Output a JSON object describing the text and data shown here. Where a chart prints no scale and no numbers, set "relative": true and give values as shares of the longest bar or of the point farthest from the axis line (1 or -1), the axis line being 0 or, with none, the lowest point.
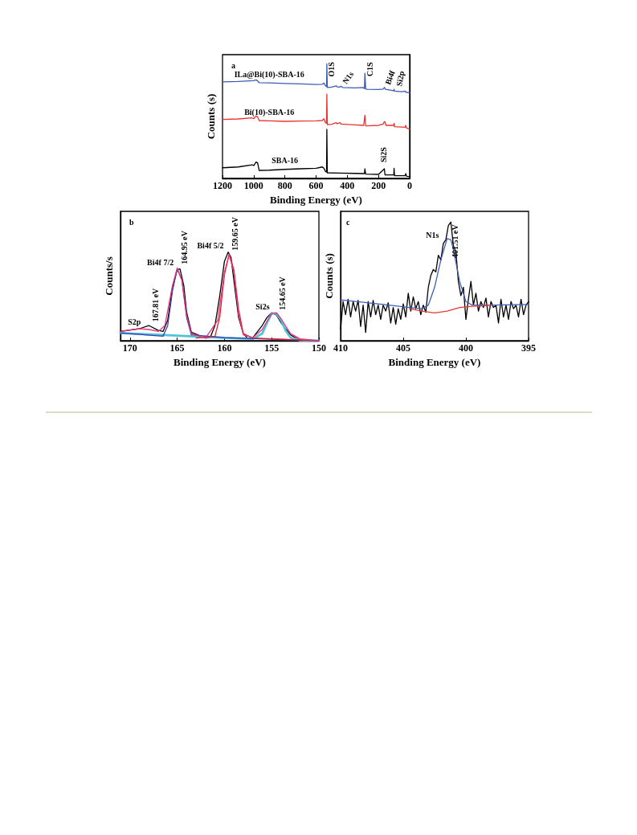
{
  "chart_data": [
    {
      "type": "line",
      "title": "a",
      "xlabel": "Binding Energy (eV)",
      "ylabel": "Counts (s)",
      "relative": true,
      "xlim": [
        1200,
        0
      ],
      "xticks": [
        1200,
        1000,
        800,
        600,
        400,
        200,
        0
      ],
      "series": [
        {
          "name": "ILa@Bi(10)-SBA-16",
          "color": "#3b5bb5",
          "x": [
            1200,
            1100,
            1000,
            985,
            975,
            965,
            900,
            800,
            700,
            600,
            560,
            550,
            540,
            533,
            531,
            528,
            500,
            470,
            465,
            450,
            440,
            430,
            350,
            300,
            290,
            287,
            282,
            275,
            200,
            170,
            162,
            155,
            102,
            100,
            97,
            50,
            28,
            25,
            0
          ],
          "values": [
            0.843,
            0.846,
            0.853,
            0.86,
            0.85,
            0.836,
            0.834,
            0.829,
            0.825,
            0.82,
            0.822,
            0.832,
            0.808,
            0.801,
            1.0,
            0.794,
            0.797,
            0.808,
            0.799,
            0.797,
            0.804,
            0.794,
            0.79,
            0.794,
            0.783,
            0.918,
            0.783,
            0.778,
            0.776,
            0.78,
            0.794,
            0.778,
            0.766,
            0.778,
            0.762,
            0.757,
            0.762,
            0.752,
            0.748
          ]
        },
        {
          "name": "Bi(10)-SBA-16",
          "color": "#e8332f",
          "x": [
            1200,
            1100,
            1010,
            1000,
            985,
            975,
            965,
            900,
            800,
            700,
            600,
            560,
            550,
            540,
            533,
            531,
            528,
            500,
            470,
            465,
            445,
            440,
            350,
            295,
            287,
            282,
            200,
            170,
            162,
            158,
            152,
            102,
            100,
            97,
            30,
            25,
            20,
            0
          ],
          "values": [
            0.514,
            0.519,
            0.528,
            0.521,
            0.544,
            0.537,
            0.505,
            0.502,
            0.498,
            0.5,
            0.502,
            0.505,
            0.521,
            0.486,
            0.481,
            0.736,
            0.47,
            0.472,
            0.486,
            0.477,
            0.486,
            0.474,
            0.467,
            0.463,
            0.551,
            0.458,
            0.463,
            0.474,
            0.495,
            0.493,
            0.463,
            0.463,
            0.481,
            0.451,
            0.446,
            0.463,
            0.439,
            0.43
          ]
        },
        {
          "name": "SBA-16",
          "color": "#000000",
          "x": [
            1200,
            1100,
            1010,
            1000,
            985,
            975,
            965,
            900,
            800,
            700,
            600,
            560,
            550,
            540,
            533,
            531,
            528,
            450,
            350,
            290,
            287,
            282,
            200,
            162,
            158,
            102,
            100,
            97,
            30,
            25,
            20,
            0
          ],
          "values": [
            0.093,
            0.1,
            0.119,
            0.112,
            0.143,
            0.136,
            0.07,
            0.072,
            0.079,
            0.084,
            0.089,
            0.1,
            0.089,
            0.061,
            0.056,
            0.428,
            0.049,
            0.047,
            0.044,
            0.042,
            0.084,
            0.037,
            0.035,
            0.084,
            0.03,
            0.03,
            0.089,
            0.023,
            0.023,
            0.042,
            0.019,
            0.016
          ]
        }
      ],
      "annotations": [
        {
          "text": "O1S",
          "x": 531,
          "y": 1.0
        },
        {
          "text": "N1s",
          "x": 440,
          "y": 0.804
        },
        {
          "text": "C1S",
          "x": 287,
          "y": 0.918
        },
        {
          "text": "Bi4f",
          "x": 162,
          "y": 0.794
        },
        {
          "text": "Si2p",
          "x": 100,
          "y": 0.778
        },
        {
          "text": "Si2S",
          "x": 162,
          "y": 0.084
        }
      ]
    },
    {
      "type": "line",
      "title": "b",
      "xlabel": "Binding Energy (eV)",
      "ylabel": "Counts/s",
      "relative": true,
      "xlim": [
        171,
        150
      ],
      "xticks": [
        170,
        165,
        160,
        155,
        150
      ],
      "series": [
        {
          "color": "#000000",
          "x": [
            171,
            169,
            168,
            167,
            166.5,
            166,
            165.5,
            165,
            164.7,
            164.3,
            164,
            163.5,
            162,
            161.5,
            161,
            160.5,
            160,
            159.6,
            159.3,
            159,
            158.5,
            158,
            157.5,
            157,
            156,
            155.5,
            155,
            154.5,
            154,
            153,
            152,
            150
          ],
          "values": [
            0.105,
            0.136,
            0.172,
            0.117,
            0.105,
            0.232,
            0.593,
            0.804,
            0.81,
            0.623,
            0.322,
            0.096,
            0.03,
            0.036,
            0.172,
            0.503,
            0.895,
            1.0,
            0.94,
            0.684,
            0.262,
            0.081,
            0.021,
            0.036,
            0.172,
            0.262,
            0.316,
            0.292,
            0.202,
            0.066,
            0.006,
            0.0
          ]
        },
        {
          "color": "#4fc3d9",
          "x": [
            171,
            165,
            160,
            157,
            156,
            155.5,
            155,
            154.5,
            154,
            153.5,
            153,
            152,
            150
          ],
          "values": [
            0.087,
            0.057,
            0.033,
            0.021,
            0.081,
            0.202,
            0.307,
            0.307,
            0.232,
            0.111,
            0.036,
            0.006,
            0.0
          ]
        },
        {
          "color": "#3a3fb0",
          "x": [
            171,
            166.5,
            166,
            165.5,
            165,
            164.5,
            164,
            163.5,
            160,
            150
          ],
          "values": [
            0.087,
            0.051,
            0.172,
            0.563,
            0.81,
            0.684,
            0.262,
            0.066,
            0.036,
            0.0
          ]
        },
        {
          "color": "#e0202a",
          "x": [
            163,
            161,
            160.5,
            160,
            159.5,
            159,
            158.5,
            158,
            157,
            150
          ],
          "values": [
            0.03,
            0.051,
            0.262,
            0.744,
            0.979,
            0.804,
            0.352,
            0.081,
            0.03,
            0.0
          ]
        },
        {
          "color": "#e6357a",
          "x": [
            171,
            169,
            168,
            167,
            166.3,
            165.5,
            165,
            164.5,
            164,
            163.5,
            162,
            160.7,
            160,
            159.5,
            159,
            158.5,
            158,
            157,
            156,
            155,
            154.5,
            154,
            153,
            152,
            150
          ],
          "values": [
            0.105,
            0.136,
            0.127,
            0.105,
            0.172,
            0.623,
            0.819,
            0.684,
            0.292,
            0.081,
            0.03,
            0.232,
            0.774,
            0.97,
            0.774,
            0.292,
            0.066,
            0.036,
            0.127,
            0.307,
            0.316,
            0.247,
            0.081,
            0.021,
            0.0
          ]
        }
      ],
      "annotations": [
        {
          "text": "S2p",
          "x": 168.5,
          "y": 0.14
        },
        {
          "text": "167.81 eV",
          "x": 167.81,
          "y": 0.16
        },
        {
          "text": "Bi4f 7/2",
          "x": 164.95,
          "y": 0.81
        },
        {
          "text": "164.95 eV",
          "x": 164.95,
          "y": 0.81
        },
        {
          "text": "Bi4f 5/2",
          "x": 159.65,
          "y": 1.0
        },
        {
          "text": "159.65 eV",
          "x": 159.65,
          "y": 1.0
        },
        {
          "text": "Si2s",
          "x": 154.8,
          "y": 0.316
        },
        {
          "text": "154.65 eV",
          "x": 154.65,
          "y": 0.31
        }
      ]
    },
    {
      "type": "line",
      "title": "c",
      "xlabel": "Binding Energy (eV)",
      "ylabel": "Counts (s)",
      "relative": true,
      "xlim": [
        410,
        395
      ],
      "xticks": [
        410,
        405,
        400,
        395
      ],
      "series": [
        {
          "color": "#000000",
          "x": [
            410,
            409.8,
            409.6,
            409.4,
            409.2,
            409,
            408.8,
            408.6,
            408.4,
            408.2,
            408,
            407.8,
            407.6,
            407.4,
            407.2,
            407,
            406.8,
            406.6,
            406.4,
            406.2,
            406,
            405.8,
            405.6,
            405.4,
            405.2,
            405,
            404.8,
            404.6,
            404.4,
            404.2,
            404,
            403.8,
            403.6,
            403.4,
            403.2,
            403,
            402.8,
            402.6,
            402.4,
            402.2,
            402,
            401.8,
            401.6,
            401.4,
            401.2,
            401,
            400.8,
            400.6,
            400.4,
            400.2,
            400,
            399.8,
            399.6,
            399.4,
            399.2,
            399,
            398.8,
            398.6,
            398.4,
            398.2,
            398,
            397.8,
            397.6,
            397.4,
            397.2,
            397,
            396.8,
            396.6,
            396.4,
            396.2,
            396,
            395.8,
            395.6,
            395.4,
            395.2,
            395
          ],
          "values": [
            0.1,
            0.33,
            0.22,
            0.35,
            0.2,
            0.33,
            0.25,
            0.34,
            0.12,
            0.3,
            0.07,
            0.33,
            0.2,
            0.34,
            0.22,
            0.3,
            0.18,
            0.3,
            0.25,
            0.32,
            0.15,
            0.28,
            0.14,
            0.27,
            0.18,
            0.31,
            0.2,
            0.4,
            0.25,
            0.37,
            0.27,
            0.33,
            0.22,
            0.3,
            0.24,
            0.45,
            0.55,
            0.6,
            0.58,
            0.72,
            0.68,
            0.82,
            0.85,
            0.97,
            1.0,
            0.8,
            0.75,
            0.5,
            0.38,
            0.45,
            0.18,
            0.35,
            0.5,
            0.3,
            0.4,
            0.25,
            0.33,
            0.28,
            0.36,
            0.2,
            0.33,
            0.28,
            0.3,
            0.15,
            0.35,
            0.2,
            0.3,
            0.18,
            0.33,
            0.27,
            0.3,
            0.2,
            0.35,
            0.22,
            0.3,
            0.33
          ]
        },
        {
          "color": "#3f5fb8",
          "x": [
            410,
            407,
            404.5,
            403.5,
            403,
            402.5,
            402,
            401.5,
            401.2,
            401,
            400.5,
            400,
            399.5,
            398,
            395
          ],
          "values": [
            0.345,
            0.31,
            0.28,
            0.27,
            0.3,
            0.45,
            0.68,
            0.86,
            0.85,
            0.77,
            0.5,
            0.33,
            0.3,
            0.3,
            0.305
          ]
        },
        {
          "color": "#e83a30",
          "x": [
            404.5,
            403.5,
            402.5,
            401.5,
            400.5,
            399.5,
            398.5,
            398
          ],
          "values": [
            0.27,
            0.25,
            0.235,
            0.25,
            0.28,
            0.29,
            0.295,
            0.3
          ]
        }
      ],
      "annotations": [
        {
          "text": "N1s",
          "x": 401.51,
          "y": 0.86
        },
        {
          "text": "401.51 eV",
          "x": 401.51,
          "y": 0.86
        }
      ]
    }
  ]
}
